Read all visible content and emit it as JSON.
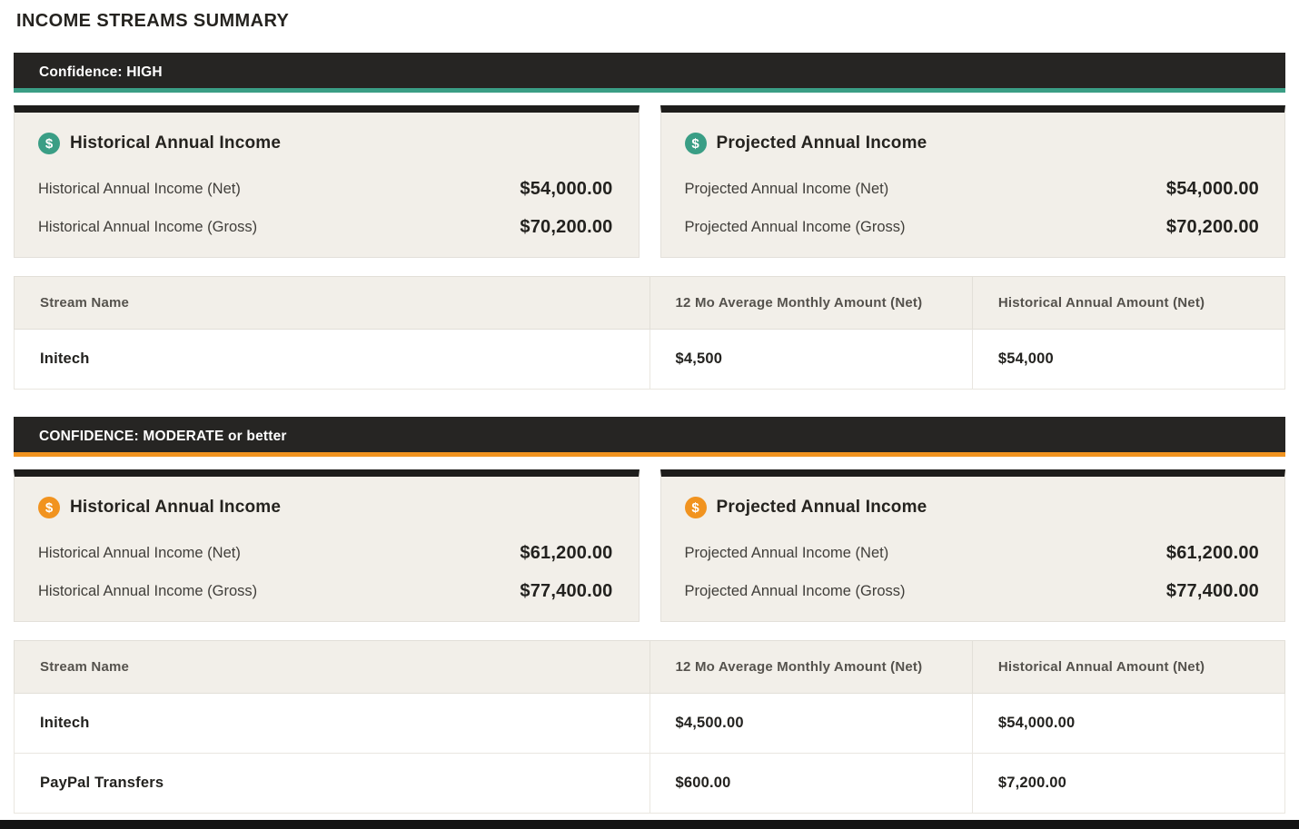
{
  "page_title": "INCOME STREAMS SUMMARY",
  "icons": {
    "dollar": "$"
  },
  "colors": {
    "banner_background": "#262523",
    "accent_high": "#3a9e85",
    "accent_moderate": "#f1931f",
    "card_background": "#f2efe9",
    "card_top_border": "#1e1d1b",
    "table_border": "#e2dfd8",
    "text_dark": "#23221f",
    "bottom_bar": "#131313"
  },
  "sections": [
    {
      "banner_label": "Confidence: HIGH",
      "accent_color": "#3a9e85",
      "cards": [
        {
          "title": "Historical Annual Income",
          "rows": [
            {
              "label": "Historical Annual Income (Net)",
              "value": "$54,000.00"
            },
            {
              "label": "Historical Annual Income (Gross)",
              "value": "$70,200.00"
            }
          ]
        },
        {
          "title": "Projected Annual Income",
          "rows": [
            {
              "label": "Projected Annual Income (Net)",
              "value": "$54,000.00"
            },
            {
              "label": "Projected Annual Income (Gross)",
              "value": "$70,200.00"
            }
          ]
        }
      ],
      "table": {
        "headers": [
          "Stream Name",
          "12 Mo Average Monthly Amount (Net)",
          "Historical Annual Amount (Net)"
        ],
        "rows": [
          {
            "stream": "Initech",
            "monthly": "$4,500",
            "annual": "$54,000"
          }
        ]
      }
    },
    {
      "banner_label": "CONFIDENCE: MODERATE or better",
      "accent_color": "#f1931f",
      "cards": [
        {
          "title": "Historical Annual Income",
          "rows": [
            {
              "label": "Historical Annual Income (Net)",
              "value": "$61,200.00"
            },
            {
              "label": "Historical Annual Income (Gross)",
              "value": "$77,400.00"
            }
          ]
        },
        {
          "title": "Projected Annual Income",
          "rows": [
            {
              "label": "Projected Annual Income (Net)",
              "value": "$61,200.00"
            },
            {
              "label": "Projected Annual Income (Gross)",
              "value": "$77,400.00"
            }
          ]
        }
      ],
      "table": {
        "headers": [
          "Stream Name",
          "12 Mo Average Monthly Amount (Net)",
          "Historical Annual Amount (Net)"
        ],
        "rows": [
          {
            "stream": "Initech",
            "monthly": "$4,500.00",
            "annual": "$54,000.00"
          },
          {
            "stream": "PayPal Transfers",
            "monthly": "$600.00",
            "annual": "$7,200.00"
          }
        ]
      }
    }
  ]
}
